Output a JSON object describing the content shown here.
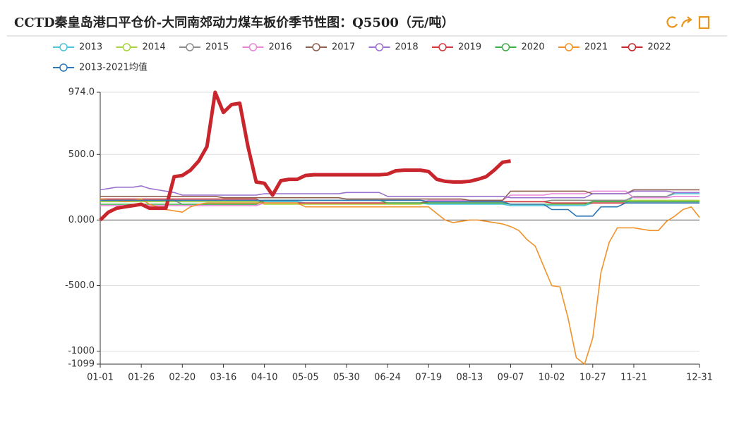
{
  "chart_data": {
    "type": "line",
    "title": "CCTD秦皇岛港口平仓价-大同南郊动力煤车板价季节性图：Q5500（元/吨）",
    "categories": [
      "01-01",
      null,
      null,
      null,
      null,
      "01-26",
      null,
      null,
      null,
      null,
      "02-20",
      null,
      null,
      null,
      null,
      "03-16",
      null,
      null,
      null,
      null,
      "04-10",
      null,
      null,
      null,
      null,
      "05-05",
      null,
      null,
      null,
      null,
      "05-30",
      null,
      null,
      null,
      null,
      "06-24",
      null,
      null,
      null,
      null,
      "07-19",
      null,
      null,
      null,
      null,
      "08-13",
      null,
      null,
      null,
      null,
      "09-07",
      null,
      null,
      null,
      null,
      "10-02",
      null,
      null,
      null,
      null,
      "10-27",
      null,
      null,
      null,
      null,
      "11-21",
      null,
      null,
      null,
      null,
      null,
      null,
      null,
      "12-31"
    ],
    "ylim": [
      -1099,
      974
    ],
    "yticks": [
      {
        "value": 974,
        "label": "974.0"
      },
      {
        "value": 500,
        "label": "500.0"
      },
      {
        "value": 0,
        "label": "0.000"
      },
      {
        "value": -500,
        "label": "-500.0"
      },
      -1000,
      -1099
    ],
    "grid": true,
    "series": [
      {
        "name": "2013",
        "color": "#4fc3d9",
        "values": [
          150,
          150,
          150,
          150,
          150,
          150,
          150,
          150,
          150,
          150,
          140,
          140,
          140,
          140,
          140,
          140,
          140,
          140,
          140,
          140,
          140,
          140,
          140,
          140,
          140,
          130,
          130,
          130,
          130,
          130,
          130,
          130,
          130,
          130,
          130,
          130,
          130,
          130,
          130,
          130,
          120,
          120,
          120,
          120,
          120,
          120,
          120,
          120,
          120,
          120,
          110,
          110,
          110,
          110,
          110,
          110,
          110,
          110,
          110,
          110,
          130,
          130,
          130,
          130,
          130,
          180,
          180,
          180,
          180,
          180,
          200,
          200,
          200,
          200
        ]
      },
      {
        "name": "2014",
        "color": "#a8d23f",
        "values": [
          140,
          140,
          140,
          140,
          140,
          140,
          140,
          140,
          140,
          140,
          140,
          140,
          140,
          140,
          140,
          140,
          140,
          140,
          140,
          140,
          120,
          120,
          120,
          120,
          120,
          120,
          120,
          120,
          120,
          120,
          120,
          120,
          120,
          120,
          120,
          120,
          120,
          120,
          120,
          120,
          140,
          140,
          140,
          140,
          140,
          140,
          140,
          140,
          140,
          140,
          140,
          140,
          140,
          140,
          140,
          150,
          150,
          150,
          150,
          150,
          150,
          150,
          150,
          150,
          150,
          150,
          150,
          150,
          150,
          150,
          150,
          150,
          150,
          150
        ]
      },
      {
        "name": "2015",
        "color": "#8c8c8c",
        "values": [
          150,
          150,
          150,
          150,
          150,
          150,
          150,
          150,
          150,
          150,
          120,
          120,
          120,
          120,
          120,
          120,
          120,
          120,
          120,
          120,
          150,
          150,
          150,
          150,
          150,
          150,
          150,
          150,
          150,
          150,
          150,
          150,
          150,
          150,
          150,
          150,
          150,
          150,
          150,
          150,
          140,
          140,
          140,
          140,
          140,
          140,
          140,
          140,
          140,
          140,
          140,
          140,
          140,
          140,
          140,
          150,
          150,
          150,
          150,
          150,
          150,
          150,
          150,
          150,
          150,
          180,
          180,
          180,
          180,
          180,
          210,
          210,
          210,
          210
        ]
      },
      {
        "name": "2016",
        "color": "#e786d7",
        "values": [
          110,
          110,
          110,
          110,
          110,
          110,
          110,
          110,
          110,
          110,
          110,
          110,
          110,
          110,
          110,
          110,
          110,
          110,
          110,
          110,
          130,
          130,
          130,
          130,
          130,
          130,
          130,
          130,
          130,
          130,
          130,
          130,
          130,
          130,
          130,
          130,
          130,
          130,
          130,
          130,
          150,
          150,
          150,
          150,
          150,
          150,
          150,
          150,
          150,
          150,
          190,
          190,
          190,
          190,
          190,
          200,
          200,
          200,
          200,
          200,
          220,
          220,
          220,
          220,
          220,
          170,
          170,
          170,
          170,
          170,
          180,
          180,
          180,
          180
        ]
      },
      {
        "name": "2017",
        "color": "#8f5f4e",
        "values": [
          180,
          180,
          180,
          180,
          180,
          180,
          180,
          180,
          180,
          180,
          180,
          180,
          180,
          180,
          180,
          170,
          170,
          170,
          170,
          170,
          170,
          170,
          170,
          170,
          170,
          170,
          170,
          170,
          170,
          170,
          160,
          160,
          160,
          160,
          160,
          160,
          160,
          160,
          160,
          160,
          160,
          160,
          160,
          160,
          160,
          150,
          150,
          150,
          150,
          150,
          220,
          220,
          220,
          220,
          220,
          220,
          220,
          220,
          220,
          220,
          200,
          200,
          200,
          200,
          200,
          230,
          230,
          230,
          230,
          230,
          230,
          230,
          230,
          230
        ]
      },
      {
        "name": "2018",
        "color": "#9b72cf",
        "values": [
          230,
          240,
          250,
          250,
          250,
          260,
          240,
          230,
          220,
          210,
          190,
          190,
          190,
          190,
          190,
          190,
          190,
          190,
          190,
          190,
          200,
          200,
          200,
          200,
          200,
          200,
          200,
          200,
          200,
          200,
          210,
          210,
          210,
          210,
          210,
          180,
          180,
          180,
          180,
          180,
          180,
          180,
          180,
          180,
          180,
          180,
          180,
          180,
          180,
          180,
          170,
          170,
          170,
          170,
          170,
          170,
          170,
          170,
          170,
          170,
          200,
          200,
          200,
          200,
          200,
          220,
          220,
          220,
          220,
          220,
          210,
          210,
          210,
          210
        ]
      },
      {
        "name": "2019",
        "color": "#d5373d",
        "values": [
          160,
          160,
          160,
          160,
          160,
          160,
          160,
          160,
          160,
          160,
          160,
          160,
          160,
          160,
          160,
          160,
          160,
          160,
          160,
          160,
          130,
          130,
          130,
          130,
          130,
          130,
          130,
          130,
          130,
          130,
          130,
          130,
          130,
          130,
          130,
          130,
          130,
          130,
          130,
          130,
          140,
          140,
          140,
          140,
          140,
          140,
          140,
          140,
          140,
          140,
          140,
          140,
          140,
          140,
          140,
          130,
          130,
          130,
          130,
          130,
          130,
          130,
          130,
          130,
          130,
          130,
          130,
          130,
          130,
          130,
          130,
          130,
          130,
          130
        ]
      },
      {
        "name": "2020",
        "color": "#3fae49",
        "values": [
          120,
          120,
          120,
          120,
          120,
          120,
          120,
          120,
          120,
          120,
          120,
          120,
          120,
          120,
          120,
          120,
          120,
          120,
          120,
          120,
          150,
          150,
          150,
          150,
          150,
          150,
          150,
          150,
          150,
          150,
          150,
          150,
          150,
          150,
          150,
          130,
          130,
          130,
          130,
          130,
          130,
          130,
          130,
          130,
          130,
          130,
          130,
          130,
          130,
          130,
          120,
          120,
          120,
          120,
          120,
          120,
          120,
          120,
          120,
          120,
          140,
          140,
          140,
          140,
          140,
          140,
          140,
          140,
          140,
          140,
          140,
          140,
          140,
          140
        ]
      },
      {
        "name": "2021",
        "color": "#f0922a",
        "values": [
          160,
          150,
          150,
          140,
          150,
          160,
          120,
          100,
          80,
          70,
          60,
          100,
          120,
          130,
          130,
          130,
          130,
          130,
          130,
          130,
          130,
          130,
          130,
          130,
          130,
          100,
          100,
          100,
          100,
          100,
          100,
          100,
          100,
          100,
          100,
          100,
          100,
          100,
          100,
          100,
          100,
          50,
          0,
          -20,
          -10,
          0,
          0,
          -10,
          -20,
          -30,
          -50,
          -80,
          -150,
          -200,
          -350,
          -500,
          -510,
          -750,
          -1050,
          -1099,
          -900,
          -400,
          -170,
          -60,
          -60,
          -60,
          -70,
          -80,
          -80,
          -10,
          30,
          80,
          100,
          20
        ]
      },
      {
        "name": "2022",
        "color": "#c8252c",
        "values": [
          0,
          60,
          90,
          100,
          110,
          120,
          90,
          90,
          90,
          330,
          340,
          380,
          450,
          560,
          974,
          820,
          880,
          890,
          560,
          290,
          280,
          190,
          300,
          310,
          310,
          340,
          345,
          345,
          345,
          345,
          345,
          345,
          345,
          345,
          345,
          350,
          375,
          380,
          380,
          380,
          370,
          310,
          295,
          290,
          290,
          295,
          310,
          330,
          380,
          440,
          450,
          null,
          null,
          null,
          null,
          null,
          null,
          null,
          null,
          null,
          null,
          null,
          null,
          null,
          null,
          null,
          null,
          null,
          null,
          null,
          null,
          null,
          null,
          null
        ]
      },
      {
        "name": "2013-2021均值",
        "color": "#2e76b4",
        "values": [
          150,
          150,
          150,
          150,
          150,
          150,
          150,
          150,
          150,
          150,
          150,
          150,
          150,
          150,
          150,
          150,
          150,
          150,
          150,
          150,
          150,
          150,
          150,
          150,
          150,
          150,
          150,
          150,
          150,
          150,
          150,
          150,
          150,
          150,
          150,
          150,
          150,
          150,
          150,
          150,
          140,
          140,
          140,
          140,
          140,
          140,
          140,
          140,
          140,
          140,
          120,
          120,
          120,
          120,
          120,
          80,
          80,
          80,
          30,
          30,
          30,
          100,
          100,
          100,
          130,
          130,
          130,
          130,
          130,
          130,
          130,
          130,
          130,
          130
        ]
      }
    ]
  }
}
